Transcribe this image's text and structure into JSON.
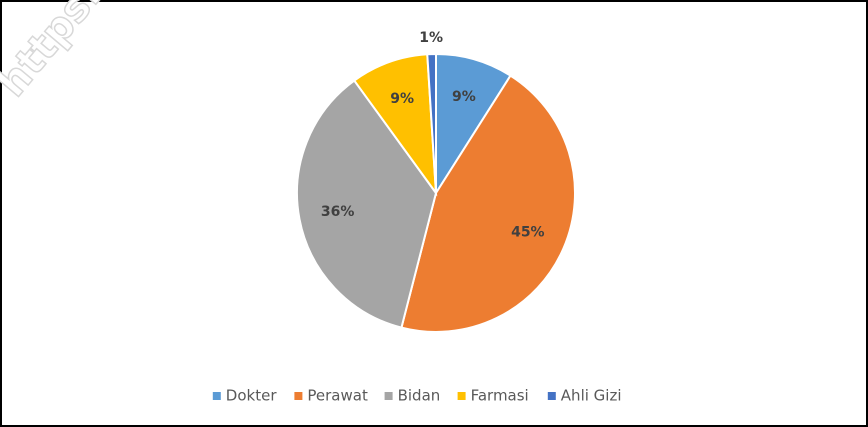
{
  "watermark": "https:/",
  "chart_data": {
    "type": "pie",
    "categories": [
      "Dokter",
      "Perawat",
      "Bidan",
      "Farmasi",
      "Ahli Gizi"
    ],
    "values": [
      9,
      45,
      36,
      9,
      1
    ],
    "value_labels": [
      "9%",
      "45%",
      "36%",
      "9%",
      "1%"
    ],
    "colors": [
      "#5b9bd5",
      "#ed7d31",
      "#a5a5a5",
      "#ffc000",
      "#4472c4"
    ],
    "legend": "bottom"
  }
}
